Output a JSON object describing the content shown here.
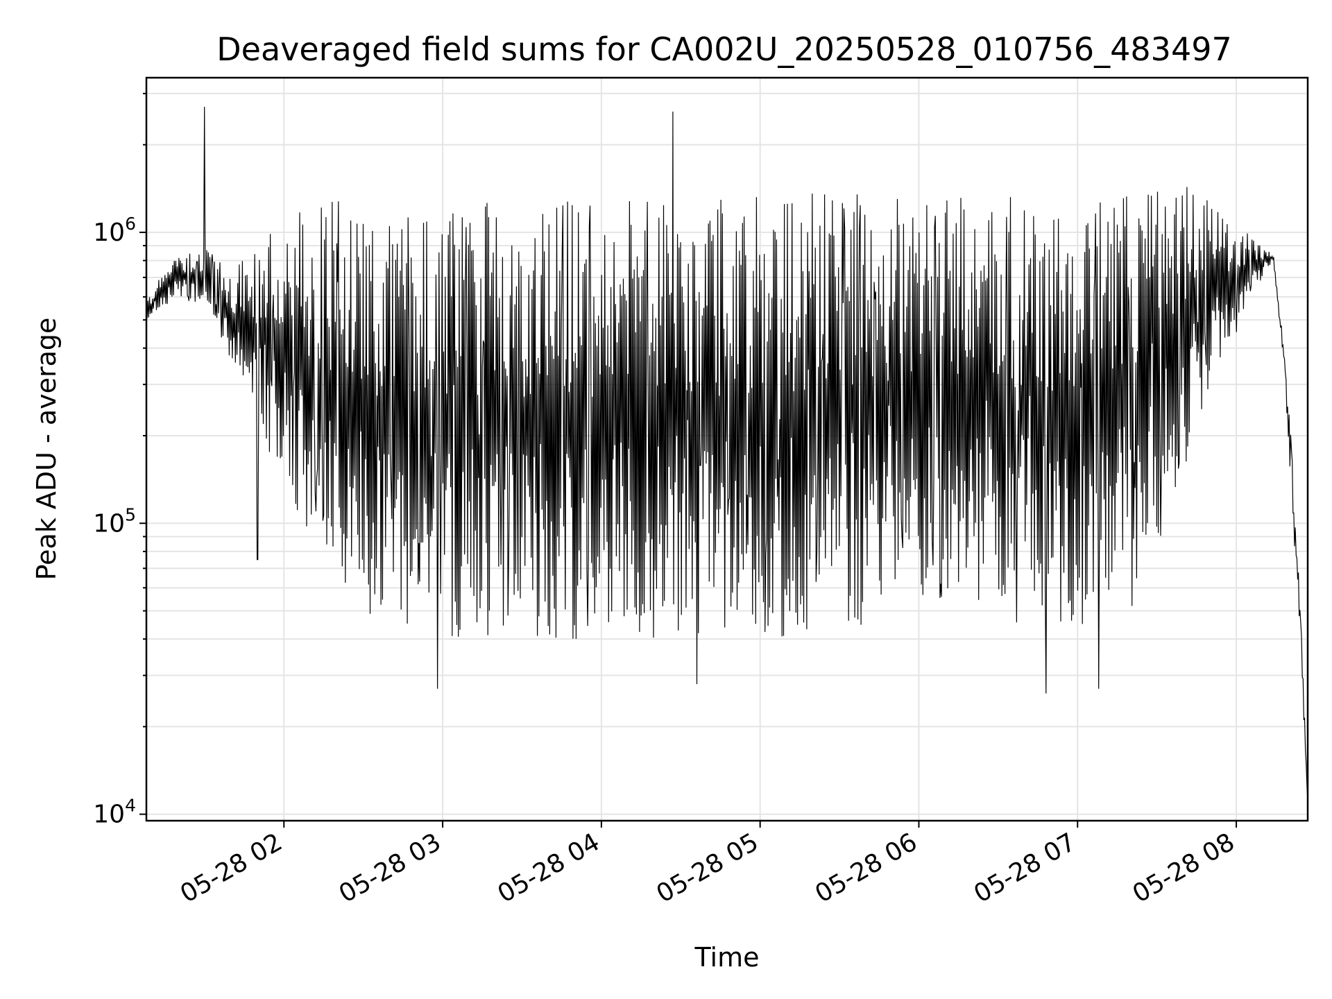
{
  "chart_data": {
    "type": "line",
    "title": "Deaveraged field sums for CA002U_20250528_010756_483497",
    "xlabel": "Time",
    "ylabel": "Peak ADU - average",
    "x_range": [
      "2025-05-28 01:08",
      "2025-05-28 08:27"
    ],
    "ylim": [
      9500,
      3400000
    ],
    "y_scale": "log",
    "grid": true,
    "legend": "none",
    "line_color": "#000000",
    "x_ticks": [
      "05-28 02",
      "05-28 03",
      "05-28 04",
      "05-28 05",
      "05-28 06",
      "05-28 07",
      "05-28 08"
    ],
    "y_ticks": [
      {
        "base": "10",
        "exp": "4",
        "value": 10000
      },
      {
        "base": "10",
        "exp": "5",
        "value": 100000
      },
      {
        "base": "10",
        "exp": "6",
        "value": 1000000
      }
    ],
    "series": [
      {
        "style": "dense oscillating line",
        "envelope_x": [
          "2025-05-28 01:08",
          "2025-05-28 01:20",
          "2025-05-28 01:30",
          "2025-05-28 01:40",
          "2025-05-28 01:50",
          "2025-05-28 02:00",
          "2025-05-28 02:10",
          "2025-05-28 02:20",
          "2025-05-28 02:30",
          "2025-05-28 02:40",
          "2025-05-28 02:50",
          "2025-05-28 03:00",
          "2025-05-28 03:30",
          "2025-05-28 04:00",
          "2025-05-28 04:30",
          "2025-05-28 05:00",
          "2025-05-28 05:30",
          "2025-05-28 06:00",
          "2025-05-28 06:30",
          "2025-05-28 07:00",
          "2025-05-28 07:20",
          "2025-05-28 07:30",
          "2025-05-28 07:40",
          "2025-05-28 07:50",
          "2025-05-28 08:00",
          "2025-05-28 08:10",
          "2025-05-28 08:14",
          "2025-05-28 08:18",
          "2025-05-28 08:21",
          "2025-05-28 08:24",
          "2025-05-28 08:27"
        ],
        "upper": [
          600000,
          850000,
          900000,
          750000,
          900000,
          1100000,
          1300000,
          1300000,
          1200000,
          1100000,
          1200000,
          1300000,
          1300000,
          1300000,
          1300000,
          1350000,
          1400000,
          1400000,
          1350000,
          1300000,
          1400000,
          1600000,
          1600000,
          1400000,
          1100000,
          900000,
          850000,
          400000,
          180000,
          60000,
          11000
        ],
        "lower": [
          500000,
          600000,
          550000,
          350000,
          200000,
          150000,
          80000,
          60000,
          50000,
          45000,
          42000,
          40000,
          40000,
          40000,
          40000,
          40000,
          42000,
          50000,
          45000,
          42000,
          50000,
          80000,
          150000,
          300000,
          450000,
          700000,
          800000,
          350000,
          120000,
          40000,
          11000
        ],
        "spikes": [
          {
            "x": "2025-05-28 01:30",
            "y": 2700000
          },
          {
            "x": "2025-05-28 04:27",
            "y": 2600000
          },
          {
            "x": "2025-05-28 01:50",
            "y": 75000
          },
          {
            "x": "2025-05-28 02:58",
            "y": 27000
          },
          {
            "x": "2025-05-28 04:36",
            "y": 28000
          },
          {
            "x": "2025-05-28 06:48",
            "y": 26000
          },
          {
            "x": "2025-05-28 07:08",
            "y": 27000
          }
        ]
      }
    ]
  }
}
